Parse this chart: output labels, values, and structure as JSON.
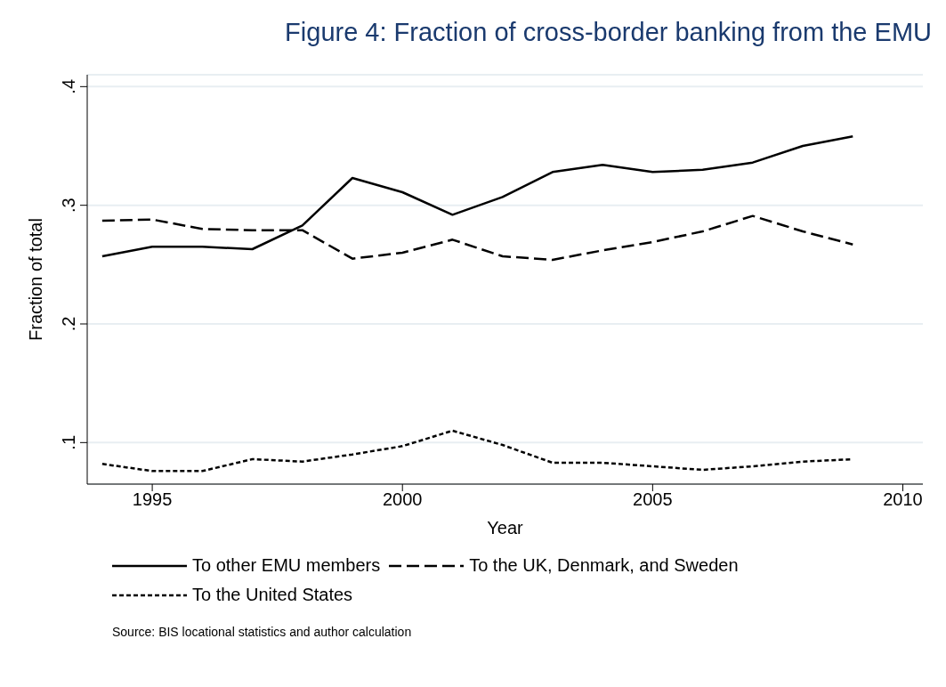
{
  "chart_data": {
    "type": "line",
    "title": "Figure 4: Fraction of cross-border banking from the EMU",
    "xlabel": "Year",
    "ylabel": "Fraction of total",
    "x": [
      1994,
      1995,
      1996,
      1997,
      1998,
      1999,
      2000,
      2001,
      2002,
      2003,
      2004,
      2005,
      2006,
      2007,
      2008,
      2009
    ],
    "series": [
      {
        "name": "To other EMU members",
        "color": "#000000",
        "line_style": "solid",
        "values": [
          0.257,
          0.265,
          0.265,
          0.263,
          0.283,
          0.323,
          0.311,
          0.292,
          0.307,
          0.328,
          0.334,
          0.328,
          0.33,
          0.336,
          0.35,
          0.358
        ]
      },
      {
        "name": "To the UK, Denmark, and Sweden",
        "color": "#000000",
        "line_style": "dashed",
        "values": [
          0.287,
          0.288,
          0.28,
          0.279,
          0.279,
          0.255,
          0.26,
          0.271,
          0.257,
          0.254,
          0.262,
          0.269,
          0.278,
          0.291,
          0.278,
          0.267
        ]
      },
      {
        "name": "To the United States",
        "color": "#000000",
        "line_style": "dotted",
        "values": [
          0.082,
          0.076,
          0.076,
          0.086,
          0.084,
          0.09,
          0.097,
          0.11,
          0.098,
          0.083,
          0.083,
          0.08,
          0.077,
          0.08,
          0.084,
          0.086
        ]
      }
    ],
    "xlim": [
      1993.7,
      2010.4
    ],
    "xticks": [
      1995,
      2000,
      2005,
      2010
    ],
    "ylim": [
      0.065,
      0.41
    ],
    "yticks": [
      {
        "value": 0.1,
        "label": ".1"
      },
      {
        "value": 0.2,
        "label": ".2"
      },
      {
        "value": 0.3,
        "label": ".3"
      },
      {
        "value": 0.4,
        "label": ".4"
      }
    ],
    "grid": "y",
    "legend": "bottom",
    "marker": "none",
    "annotations": [
      "Source: BIS locational statistics and author calculation"
    ]
  }
}
